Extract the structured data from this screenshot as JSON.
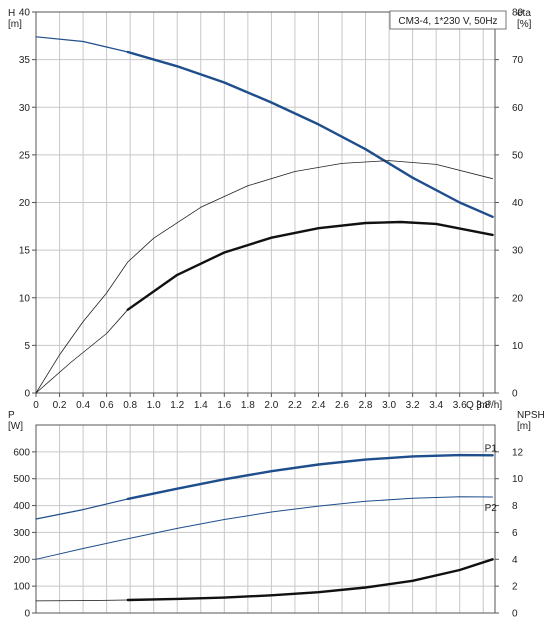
{
  "chart_data": [
    {
      "type": "line",
      "title": "CM3-4, 1*230 V, 50Hz",
      "xlabel": "Q [m³/h]",
      "ylabel_left": "H\n[m]",
      "ylabel_right": "eta\n[%]",
      "xlim": [
        0,
        3.9
      ],
      "ylim_left": [
        0,
        40
      ],
      "ylim_right": [
        0,
        80
      ],
      "grid": true,
      "x_ticks": [
        "0",
        "0.2",
        "0.4",
        "0.6",
        "0.8",
        "1.0",
        "1.2",
        "1.4",
        "1.6",
        "1.8",
        "2.0",
        "2.2",
        "2.4",
        "2.6",
        "2.8",
        "3.0",
        "3.2",
        "3.4",
        "3.6",
        "3.8"
      ],
      "y_ticks_left": [
        "0",
        "5",
        "10",
        "15",
        "20",
        "25",
        "30",
        "35",
        "40"
      ],
      "y_ticks_right": [
        "0",
        "10",
        "20",
        "30",
        "40",
        "50",
        "60",
        "70",
        "80"
      ],
      "series": [
        {
          "axis": "left",
          "color": "#1f4e8c",
          "width": 1.2,
          "x": [
            0,
            0.4,
            0.78
          ],
          "y": [
            37.4,
            36.9,
            35.8
          ]
        },
        {
          "axis": "left",
          "color": "#1f4e8c",
          "width": 2.4,
          "x": [
            0.78,
            1.2,
            1.6,
            2.0,
            2.4,
            2.8,
            3.2,
            3.6,
            3.88
          ],
          "y": [
            35.8,
            34.3,
            32.6,
            30.5,
            28.2,
            25.6,
            22.6,
            20.0,
            18.5
          ]
        },
        {
          "axis": "right",
          "color": "#222222",
          "width": 0.8,
          "x": [
            0,
            0.2,
            0.4,
            0.6,
            0.78,
            1.0,
            1.4,
            1.8,
            2.2,
            2.6,
            3.0,
            3.4,
            3.88
          ],
          "y": [
            0,
            8,
            15,
            21,
            27.5,
            32.5,
            39,
            43.5,
            46.5,
            48.2,
            48.8,
            48.0,
            45.0
          ]
        },
        {
          "axis": "right",
          "color": "#222222",
          "width": 0.8,
          "x": [
            0,
            0.3,
            0.6,
            0.78
          ],
          "y": [
            0,
            6.5,
            12.5,
            17.5
          ]
        },
        {
          "axis": "right",
          "color": "#111111",
          "width": 2.4,
          "x": [
            0.78,
            1.2,
            1.6,
            2.0,
            2.4,
            2.8,
            3.1,
            3.4,
            3.88
          ],
          "y": [
            17.5,
            24.8,
            29.5,
            32.6,
            34.6,
            35.7,
            35.9,
            35.5,
            33.2
          ]
        }
      ]
    },
    {
      "type": "line",
      "xlabel": "",
      "ylabel_left": "P\n[W]",
      "ylabel_right": "NPSH\n[m]",
      "xlim": [
        0,
        3.9
      ],
      "ylim_left": [
        0,
        700
      ],
      "ylim_right": [
        0,
        14
      ],
      "grid": true,
      "y_ticks_left": [
        "0",
        "100",
        "200",
        "300",
        "400",
        "500",
        "600"
      ],
      "y_ticks_right": [
        "0",
        "2",
        "4",
        "6",
        "8",
        "10",
        "12"
      ],
      "series": [
        {
          "name": "P1",
          "axis": "left",
          "color": "#1f4e8c",
          "width": 1.2,
          "x": [
            0,
            0.4,
            0.78
          ],
          "y": [
            350,
            385,
            425
          ]
        },
        {
          "name": "P1",
          "axis": "left",
          "color": "#1f4e8c",
          "width": 2.4,
          "x": [
            0.78,
            1.2,
            1.6,
            2.0,
            2.4,
            2.8,
            3.2,
            3.6,
            3.88
          ],
          "y": [
            425,
            463,
            498,
            528,
            553,
            571,
            583,
            588,
            587
          ]
        },
        {
          "name": "P2",
          "axis": "left",
          "color": "#1f4e8c",
          "width": 1.0,
          "x": [
            0,
            0.4,
            0.8,
            1.2,
            1.6,
            2.0,
            2.4,
            2.8,
            3.2,
            3.6,
            3.88
          ],
          "y": [
            200,
            240,
            278,
            315,
            348,
            376,
            398,
            416,
            427,
            433,
            432
          ]
        },
        {
          "axis": "right",
          "color": "#111111",
          "width": 0.8,
          "x": [
            0,
            0.4,
            0.78
          ],
          "y": [
            0.9,
            0.92,
            0.97
          ]
        },
        {
          "axis": "right",
          "color": "#111111",
          "width": 2.4,
          "x": [
            0.78,
            1.2,
            1.6,
            2.0,
            2.4,
            2.8,
            3.2,
            3.6,
            3.88
          ],
          "y": [
            0.97,
            1.05,
            1.15,
            1.32,
            1.55,
            1.9,
            2.4,
            3.2,
            4.0
          ]
        }
      ]
    }
  ]
}
